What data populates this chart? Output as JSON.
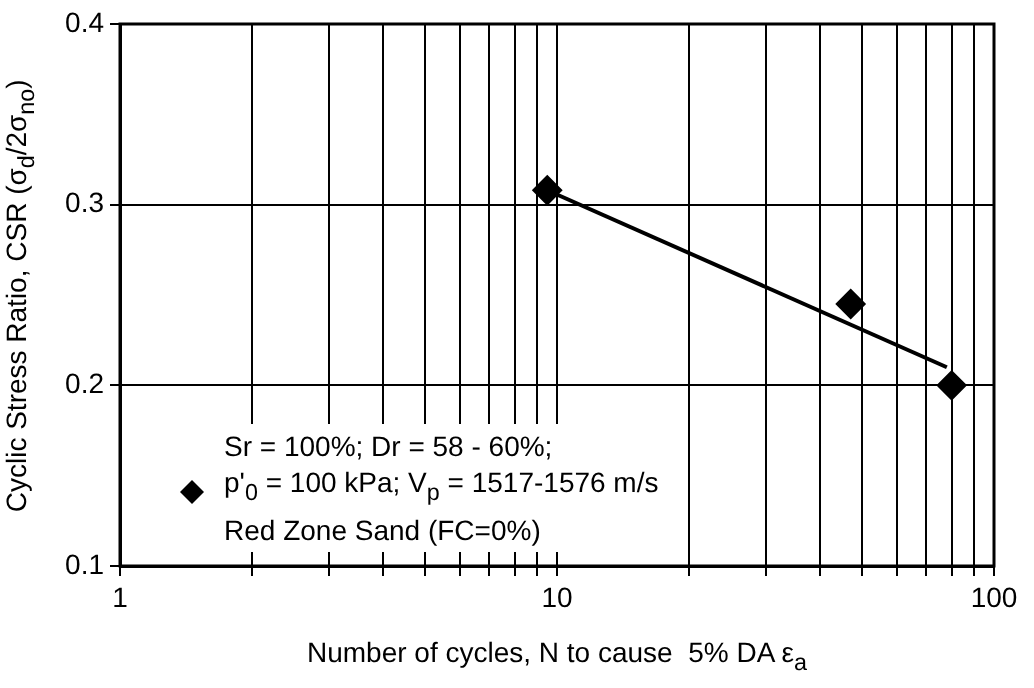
{
  "chart_data": {
    "type": "scatter",
    "xlabel": "Number of cycles, N to cause  5% DA ε$_{a}$",
    "ylabel": "Cyclic Stress Ratio, CSR (σ$_{d}$/2σ$_{no}$)",
    "log": "x",
    "xlim": [
      1,
      100
    ],
    "xticks": [
      1,
      {
        "value": 2,
        "label": null
      },
      {
        "value": 3,
        "label": null
      },
      {
        "value": 4,
        "label": null
      },
      {
        "value": 5,
        "label": null
      },
      {
        "value": 6,
        "label": null
      },
      {
        "value": 7,
        "label": null
      },
      {
        "value": 8,
        "label": null
      },
      {
        "value": 9,
        "label": null
      },
      10,
      {
        "value": 20,
        "label": null
      },
      {
        "value": 30,
        "label": null
      },
      {
        "value": 40,
        "label": null
      },
      {
        "value": 50,
        "label": null
      },
      {
        "value": 60,
        "label": null
      },
      {
        "value": 70,
        "label": null
      },
      {
        "value": 80,
        "label": null
      },
      {
        "value": 90,
        "label": null
      },
      100
    ],
    "ylim": [
      0.1,
      0.4
    ],
    "yticks": [
      0.1,
      0.2,
      0.3,
      0.4
    ],
    "grid": true,
    "legend": "bottom left",
    "series": [
      {
        "type": "scatter",
        "marker": "diamond",
        "name": "Sr = 100%; Dr = 58 - 60%;\np'$_{0}$ = 100 kPa; V$_{p}$ = 1517-1576 m/s\nRed Zone Sand (FC=0%)",
        "color": "#000000",
        "x": [
          9.5,
          47,
          80
        ],
        "values": [
          0.308,
          0.245,
          0.2
        ]
      },
      {
        "type": "line",
        "marker": "none",
        "color": "#000000",
        "x": [
          9.5,
          78
        ],
        "values": [
          0.308,
          0.21
        ]
      }
    ]
  }
}
